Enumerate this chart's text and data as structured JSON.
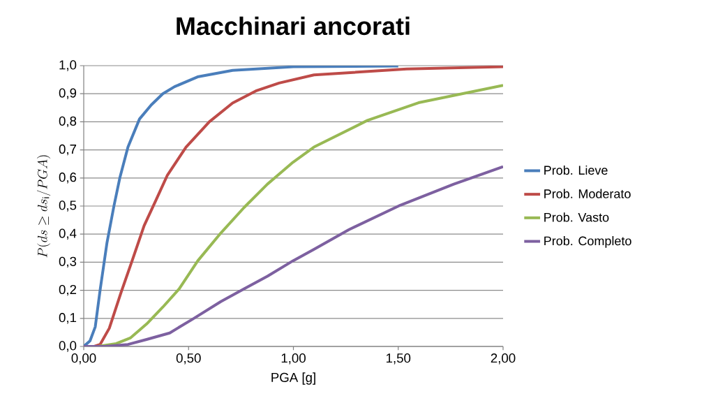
{
  "chart_data": {
    "type": "line",
    "title": "Macchinari ancorati",
    "xlabel": "PGA [g]",
    "ylabel": "P(ds \\geq ds_{\\mathrm{i}}/PGA)",
    "xlim": [
      0,
      2
    ],
    "ylim": [
      0,
      1
    ],
    "xticks": [
      {
        "value": 0,
        "label": "0,00"
      },
      {
        "value": 0.5,
        "label": "0,50"
      },
      {
        "value": 1,
        "label": "1,00"
      },
      {
        "value": 1.5,
        "label": "1,50"
      },
      {
        "value": 2,
        "label": "2,00"
      }
    ],
    "yticks": [
      {
        "value": 0,
        "label": "0,0"
      },
      {
        "value": 0.1,
        "label": "0,1"
      },
      {
        "value": 0.2,
        "label": "0,2"
      },
      {
        "value": 0.3,
        "label": "0,3"
      },
      {
        "value": 0.4,
        "label": "0,4"
      },
      {
        "value": 0.5,
        "label": "0,5"
      },
      {
        "value": 0.6,
        "label": "0,6"
      },
      {
        "value": 0.7,
        "label": "0,7"
      },
      {
        "value": 0.8,
        "label": "0,8"
      },
      {
        "value": 0.9,
        "label": "0,9"
      },
      {
        "value": 1,
        "label": "1,0"
      }
    ],
    "grid": "y",
    "legend": "right",
    "marker": "none",
    "line_style": "solid",
    "series": [
      {
        "name": "Prob. Lieve",
        "color": "#4a7ebb",
        "x": [
          0,
          0.03,
          0.055,
          0.078,
          0.111,
          0.144,
          0.172,
          0.211,
          0.266,
          0.322,
          0.377,
          0.433,
          0.543,
          0.71,
          1.0,
          1.5
        ],
        "values": [
          0,
          0.02,
          0.07,
          0.2,
          0.37,
          0.5,
          0.6,
          0.71,
          0.81,
          0.86,
          0.9,
          0.925,
          0.96,
          0.983,
          0.996,
          0.999
        ]
      },
      {
        "name": "Prob. Moderato",
        "color": "#be4b48",
        "x": [
          0,
          0.05,
          0.078,
          0.122,
          0.177,
          0.233,
          0.288,
          0.344,
          0.399,
          0.488,
          0.599,
          0.71,
          0.821,
          0.932,
          1.098,
          1.54,
          2.0
        ],
        "values": [
          0,
          0.0,
          0.007,
          0.065,
          0.19,
          0.31,
          0.43,
          0.52,
          0.61,
          0.71,
          0.8,
          0.867,
          0.91,
          0.938,
          0.967,
          0.988,
          0.996
        ]
      },
      {
        "name": "Prob. Vasto",
        "color": "#98b954",
        "x": [
          0,
          0.067,
          0.155,
          0.222,
          0.3,
          0.377,
          0.455,
          0.544,
          0.654,
          0.765,
          0.876,
          0.998,
          1.098,
          1.353,
          1.597,
          2.0
        ],
        "values": [
          0,
          0.0,
          0.01,
          0.03,
          0.08,
          0.14,
          0.205,
          0.305,
          0.404,
          0.495,
          0.578,
          0.656,
          0.71,
          0.805,
          0.868,
          0.93
        ]
      },
      {
        "name": "Prob. Completo",
        "color": "#7d60a0",
        "x": [
          0,
          0.1,
          0.211,
          0.3,
          0.41,
          0.521,
          0.654,
          0.765,
          0.876,
          0.998,
          1.098,
          1.265,
          1.51,
          1.765,
          2.0
        ],
        "values": [
          0,
          0.0,
          0.007,
          0.025,
          0.048,
          0.098,
          0.16,
          0.205,
          0.25,
          0.305,
          0.346,
          0.416,
          0.503,
          0.578,
          0.64
        ]
      }
    ]
  }
}
